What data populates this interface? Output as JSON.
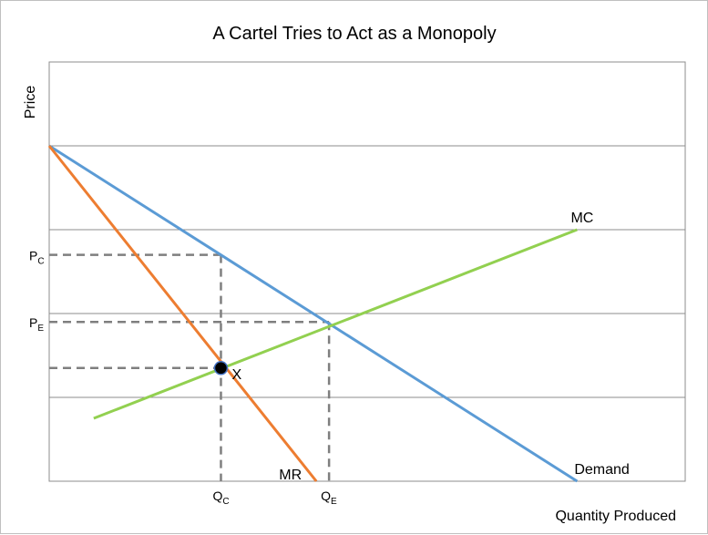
{
  "chart_data": {
    "type": "line",
    "title": "A Cartel Tries to Act as a Monopoly",
    "xlabel": "Quantity Produced",
    "ylabel": "Price",
    "grid": true,
    "xlim": [
      0,
      100
    ],
    "ylim": [
      0,
      100
    ],
    "series": [
      {
        "name": "Demand",
        "color": "#5b9bd5",
        "points": [
          [
            0,
            80
          ],
          [
            83,
            0
          ]
        ]
      },
      {
        "name": "MR",
        "color": "#ed7d31",
        "points": [
          [
            0,
            80
          ],
          [
            42,
            0
          ]
        ]
      },
      {
        "name": "MC",
        "color": "#92d050",
        "points": [
          [
            7,
            15
          ],
          [
            83,
            60
          ]
        ]
      }
    ],
    "reference_points": [
      {
        "label": "X",
        "x": 27,
        "y": 27
      }
    ],
    "dashed_guides": [
      {
        "kind": "price",
        "value": 54,
        "from_x": 0,
        "to_x": 27
      },
      {
        "kind": "price",
        "value": 38,
        "from_x": 0,
        "to_x": 44
      },
      {
        "kind": "price",
        "value": 27,
        "from_x": 0,
        "to_x": 27
      },
      {
        "kind": "quantity",
        "value": 27,
        "from_y": 54,
        "to_y": 0
      },
      {
        "kind": "quantity",
        "value": 44,
        "from_y": 38,
        "to_y": 0
      }
    ],
    "y_tick_labels": [
      {
        "main": "P",
        "sub": "C",
        "value": 54
      },
      {
        "main": "P",
        "sub": "E",
        "value": 38
      }
    ],
    "x_tick_labels": [
      {
        "main": "Q",
        "sub": "C",
        "value": 27
      },
      {
        "main": "Q",
        "sub": "E",
        "value": 44
      }
    ],
    "gridlines_y": [
      20,
      40,
      60,
      80,
      100
    ]
  }
}
